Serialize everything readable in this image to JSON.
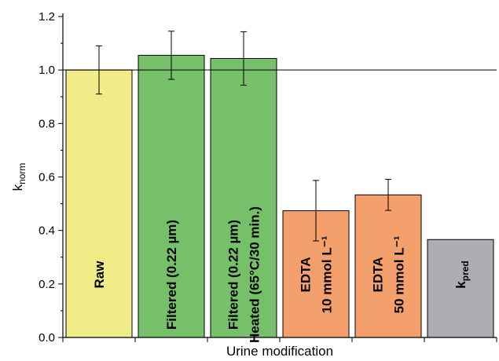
{
  "chart_data": {
    "type": "bar",
    "xlabel": "Urine modification",
    "ylabel": "k",
    "ylabel_subscript": "norm",
    "ylim": [
      0,
      1.2
    ],
    "yticks": [
      "0.0",
      "0.2",
      "0.4",
      "0.6",
      "0.8",
      "1.0",
      "1.2"
    ],
    "reference_line": 1.0,
    "grid": false,
    "bars": [
      {
        "lines": [
          "Raw"
        ],
        "value": 1.0,
        "error": 0.09,
        "color": "#f0ec88"
      },
      {
        "lines": [
          "Filtered (0.22 µm)"
        ],
        "value": 1.055,
        "error": 0.09,
        "color": "#77c06a"
      },
      {
        "lines": [
          "Filtered (0.22 µm)",
          "Heated (65°C/30 min.)"
        ],
        "value": 1.043,
        "error": 0.1,
        "color": "#77c06a"
      },
      {
        "lines": [
          "EDTA",
          "10 mmol L⁻¹"
        ],
        "value": 0.474,
        "error": 0.113,
        "color": "#f4a06c"
      },
      {
        "lines": [
          "EDTA",
          "50 mmol L⁻¹"
        ],
        "value": 0.533,
        "error": 0.058,
        "color": "#f4a06c"
      },
      {
        "lines": [
          "k"
        ],
        "subscript": "pred",
        "value": 0.366,
        "error": null,
        "color": "#adaeb1"
      }
    ]
  }
}
